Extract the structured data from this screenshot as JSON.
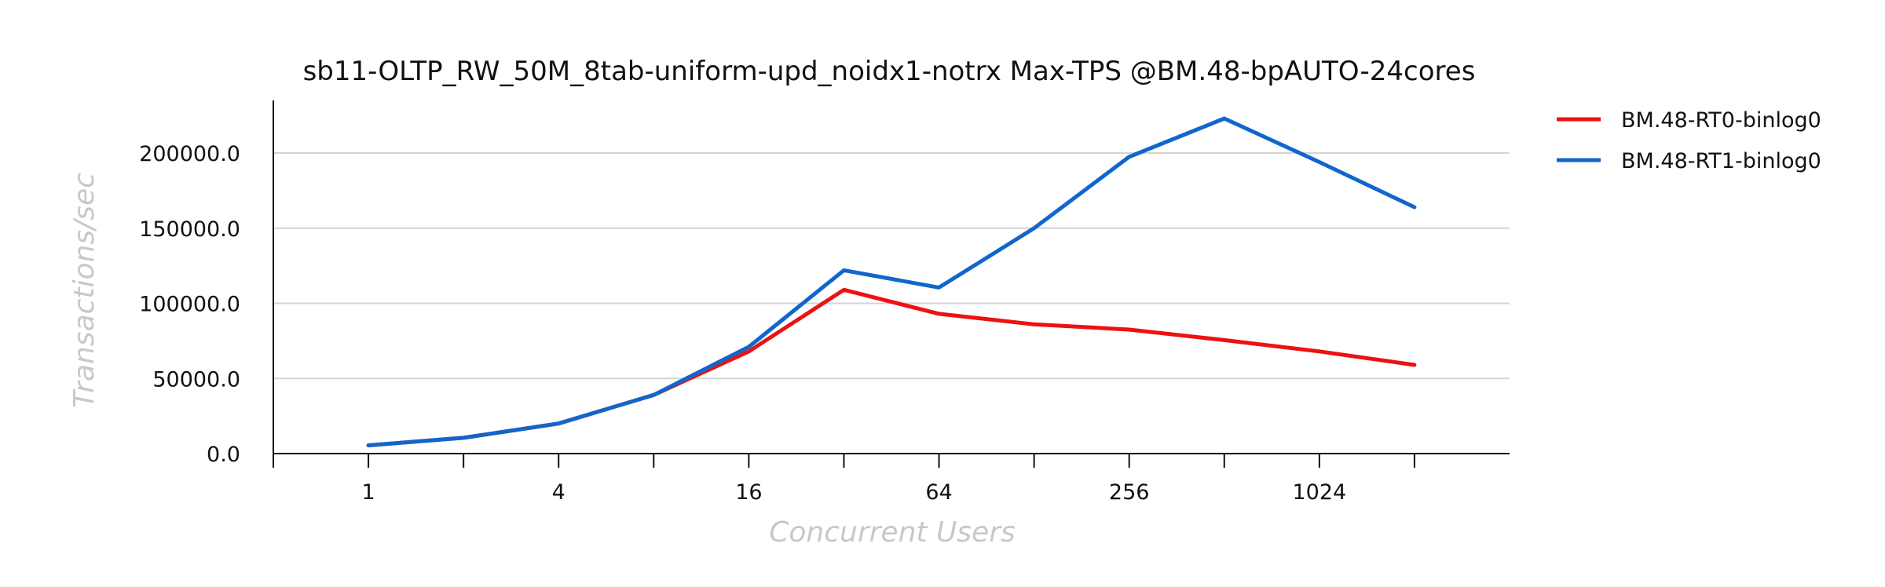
{
  "chart_data": {
    "type": "line",
    "title": "sb11-OLTP_RW_50M_8tab-uniform-upd_noidx1-notrx Max-TPS @BM.48-bpAUTO-24cores",
    "xlabel": "Concurrent Users",
    "ylabel": "Transactions/sec",
    "x": [
      1,
      2,
      4,
      8,
      16,
      32,
      64,
      128,
      256,
      512,
      1024,
      2048
    ],
    "x_scale": "log2",
    "xlim": [
      0.5,
      4096
    ],
    "x_ticks": [
      0.5,
      1,
      2,
      4,
      8,
      16,
      32,
      64,
      128,
      256,
      512,
      1024,
      2048
    ],
    "x_tick_labels": [
      {
        "value": 1,
        "label": "1"
      },
      {
        "value": 4,
        "label": "4"
      },
      {
        "value": 16,
        "label": "16"
      },
      {
        "value": 64,
        "label": "64"
      },
      {
        "value": 256,
        "label": "256"
      },
      {
        "value": 1024,
        "label": "1024"
      }
    ],
    "ylim": [
      0,
      235000
    ],
    "y_ticks": [
      {
        "value": 0,
        "label": "0.0"
      },
      {
        "value": 50000,
        "label": "50000.0"
      },
      {
        "value": 100000,
        "label": "100000.0"
      },
      {
        "value": 150000,
        "label": "150000.0"
      },
      {
        "value": 200000,
        "label": "200000.0"
      }
    ],
    "grid": "horizontal",
    "legend_position": "outside-right-top",
    "series": [
      {
        "name": "BM.48-RT0-binlog0",
        "color": "#ee1111",
        "values": [
          5500,
          10500,
          20000,
          39000,
          68000,
          109000,
          93000,
          86000,
          82500,
          75500,
          68000,
          59000
        ]
      },
      {
        "name": "BM.48-RT1-binlog0",
        "color": "#1166cc",
        "values": [
          5500,
          10500,
          20000,
          39000,
          71000,
          122000,
          110500,
          150000,
          197500,
          223000,
          194000,
          164000
        ]
      }
    ]
  }
}
